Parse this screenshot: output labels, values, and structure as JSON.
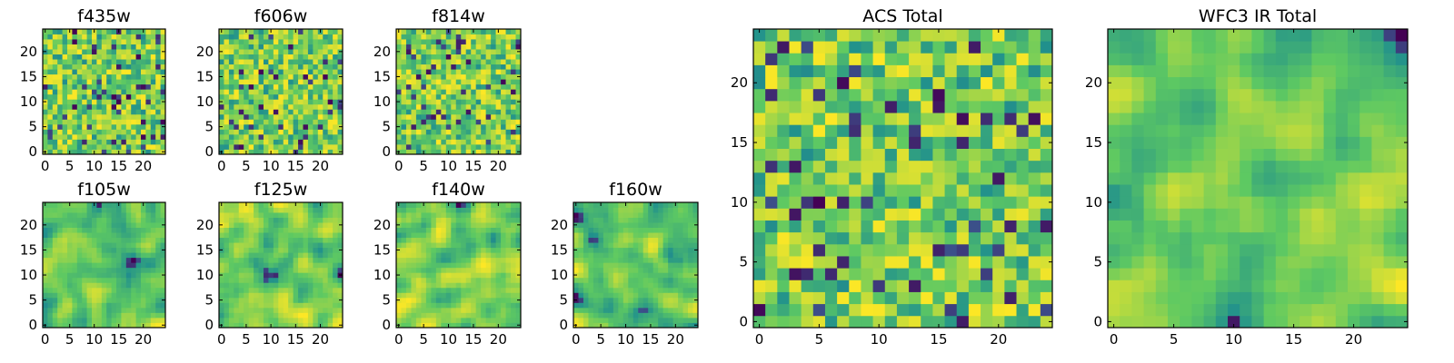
{
  "figure": {
    "colormap": [
      "#440154",
      "#3b528b",
      "#21918c",
      "#5ec962",
      "#fde725"
    ]
  },
  "chart_data": [
    {
      "id": "f435w",
      "type": "heatmap",
      "title": "f435w",
      "grid_size": 25,
      "xlim": [
        0,
        24
      ],
      "ylim": [
        0,
        24
      ],
      "x_ticks": [
        0,
        5,
        10,
        15,
        20
      ],
      "y_ticks": [
        0,
        5,
        10,
        15,
        20
      ],
      "texture": "noise"
    },
    {
      "id": "f606w",
      "type": "heatmap",
      "title": "f606w",
      "grid_size": 25,
      "xlim": [
        0,
        24
      ],
      "ylim": [
        0,
        24
      ],
      "x_ticks": [
        0,
        5,
        10,
        15,
        20
      ],
      "y_ticks": [
        0,
        5,
        10,
        15,
        20
      ],
      "texture": "noise"
    },
    {
      "id": "f814w",
      "type": "heatmap",
      "title": "f814w",
      "grid_size": 25,
      "xlim": [
        0,
        24
      ],
      "ylim": [
        0,
        24
      ],
      "x_ticks": [
        0,
        5,
        10,
        15,
        20
      ],
      "y_ticks": [
        0,
        5,
        10,
        15,
        20
      ],
      "texture": "noise"
    },
    {
      "id": "f105w",
      "type": "heatmap",
      "title": "f105w",
      "grid_size": 25,
      "xlim": [
        0,
        24
      ],
      "ylim": [
        0,
        24
      ],
      "x_ticks": [
        0,
        5,
        10,
        15,
        20
      ],
      "y_ticks": [
        0,
        5,
        10,
        15,
        20
      ],
      "texture": "smooth"
    },
    {
      "id": "f125w",
      "type": "heatmap",
      "title": "f125w",
      "grid_size": 25,
      "xlim": [
        0,
        24
      ],
      "ylim": [
        0,
        24
      ],
      "x_ticks": [
        0,
        5,
        10,
        15,
        20
      ],
      "y_ticks": [
        0,
        5,
        10,
        15,
        20
      ],
      "texture": "smooth"
    },
    {
      "id": "f140w",
      "type": "heatmap",
      "title": "f140w",
      "grid_size": 25,
      "xlim": [
        0,
        24
      ],
      "ylim": [
        0,
        24
      ],
      "x_ticks": [
        0,
        5,
        10,
        15,
        20
      ],
      "y_ticks": [
        0,
        5,
        10,
        15,
        20
      ],
      "texture": "smooth"
    },
    {
      "id": "f160w",
      "type": "heatmap",
      "title": "f160w",
      "grid_size": 25,
      "xlim": [
        0,
        24
      ],
      "ylim": [
        0,
        24
      ],
      "x_ticks": [
        0,
        5,
        10,
        15,
        20
      ],
      "y_ticks": [
        0,
        5,
        10,
        15,
        20
      ],
      "texture": "smooth"
    },
    {
      "id": "acs-total",
      "type": "heatmap",
      "title": "ACS Total",
      "grid_size": 25,
      "xlim": [
        0,
        24
      ],
      "ylim": [
        0,
        24
      ],
      "x_ticks": [
        0,
        5,
        10,
        15,
        20
      ],
      "y_ticks": [
        0,
        5,
        10,
        15,
        20
      ],
      "texture": "noise"
    },
    {
      "id": "wfc3-ir-total",
      "type": "heatmap",
      "title": "WFC3 IR Total",
      "grid_size": 25,
      "xlim": [
        0,
        24
      ],
      "ylim": [
        0,
        24
      ],
      "x_ticks": [
        0,
        5,
        10,
        15,
        20
      ],
      "y_ticks": [
        0,
        5,
        10,
        15,
        20
      ],
      "texture": "smooth"
    }
  ]
}
